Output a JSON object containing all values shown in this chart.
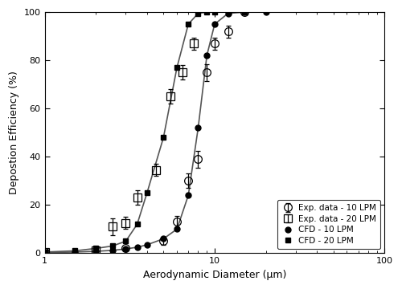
{
  "cfd_10_x": [
    1.0,
    1.5,
    2.0,
    2.5,
    3.0,
    3.5,
    4.0,
    5.0,
    6.0,
    7.0,
    8.0,
    9.0,
    10.0,
    12.0,
    15.0,
    20.0
  ],
  "cfd_10_y": [
    0.3,
    0.5,
    0.8,
    1.2,
    1.8,
    2.5,
    3.5,
    6.0,
    10.0,
    24.0,
    52.0,
    82.0,
    95.0,
    99.5,
    100.0,
    100.0
  ],
  "cfd_20_x": [
    1.0,
    1.5,
    2.0,
    2.5,
    3.0,
    3.5,
    4.0,
    5.0,
    6.0,
    7.0,
    8.0,
    9.0,
    10.0,
    12.0,
    15.0
  ],
  "cfd_20_y": [
    0.5,
    1.0,
    2.0,
    3.0,
    5.0,
    12.0,
    25.0,
    48.0,
    77.0,
    95.0,
    99.5,
    100.0,
    100.0,
    100.0,
    100.0
  ],
  "exp_10_x": [
    1.0,
    3.0,
    5.0,
    6.0,
    7.0,
    8.0,
    9.0,
    10.0,
    12.0,
    15.0
  ],
  "exp_10_y": [
    0.5,
    2.0,
    5.0,
    13.0,
    30.0,
    39.0,
    75.0,
    87.0,
    92.0,
    100.0
  ],
  "exp_10_yerr": [
    0.3,
    0.5,
    1.5,
    2.5,
    3.0,
    3.5,
    3.5,
    2.5,
    2.5,
    0.5
  ],
  "exp_20_x": [
    1.0,
    2.0,
    2.5,
    3.0,
    3.5,
    4.5,
    5.5,
    6.5,
    7.5
  ],
  "exp_20_y": [
    0.5,
    1.0,
    11.0,
    12.5,
    23.0,
    34.5,
    65.0,
    75.0,
    87.0
  ],
  "exp_20_yerr": [
    0.3,
    0.5,
    3.5,
    2.5,
    3.0,
    2.5,
    3.0,
    3.0,
    2.5
  ],
  "xlabel": "Aerodynamic Diameter (μm)",
  "ylabel": "Depostion Efficiency (%)",
  "xlim": [
    1,
    100
  ],
  "ylim": [
    0,
    100
  ],
  "legend_labels": [
    "Exp. data - 10 LPM",
    "Exp. data - 20 LPM",
    "CFD - 10 LPM",
    "CFD - 20 LPM"
  ],
  "line_color": "#555555",
  "marker_color": "#000000"
}
